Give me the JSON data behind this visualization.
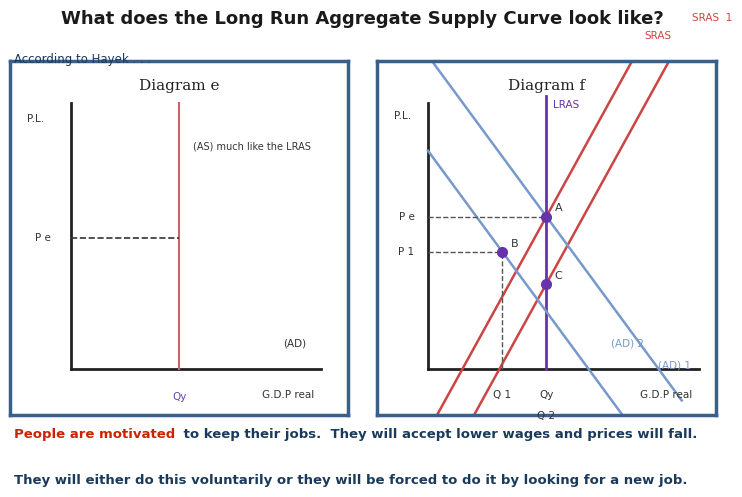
{
  "title": "What does the Long Run Aggregate Supply Curve look like?",
  "subtitle": "According to Hayek . . .",
  "title_color": "#1a1a1a",
  "subtitle_color": "#1a3a5c",
  "bg_color": "#ffffff",
  "diagram_e": {
    "title": "Diagram e",
    "border_color": "#3a5f8a",
    "axis_label_y": "P.L.",
    "axis_label_x": "G.D.P real",
    "lras_label": "(AS) much like the LRAS",
    "lras_color": "#cc6666",
    "axis_color": "#222222",
    "pe_label": "P e",
    "qty_label": "Qy",
    "ad_label": "(AD)",
    "dashed_color": "#333333"
  },
  "diagram_f": {
    "title": "Diagram f",
    "border_color": "#3a5f8a",
    "axis_label_y": "P.L.",
    "axis_label_x": "G.D.P real",
    "lras_label": "LRAS",
    "sras_label": "SRAS",
    "sras1_label": "SRAS  1",
    "ad2_label": "(AD) 2",
    "ad1_label": "(AD) 1",
    "lras_color": "#6633aa",
    "sras_color": "#cc4444",
    "sras1_color": "#cc4444",
    "ad2_color": "#7799cc",
    "ad1_color": "#7799cc",
    "pe_label": "P e",
    "p1_label": "P 1",
    "q1_label": "Q 1",
    "qy_label": "Qy",
    "q2_label": "Q 2",
    "a_label": "A",
    "b_label": "B",
    "c_label": "C",
    "dot_color": "#6633aa"
  },
  "text1_prefix": "People are motivated",
  "text1_prefix_color": "#cc2200",
  "text1_rest": " to keep their jobs.  They will accept lower wages and prices will fall.",
  "text1_color": "#1a3a5c",
  "text2": "They will either do this voluntarily or they will be forced to do it by looking for a new job.",
  "text2_color": "#1a3a5c"
}
